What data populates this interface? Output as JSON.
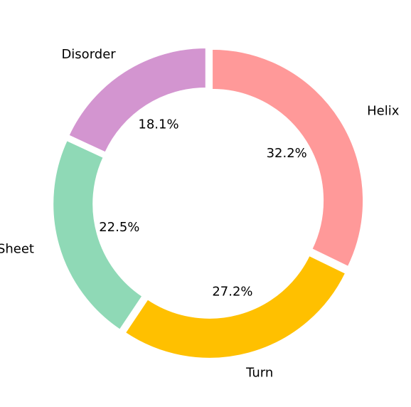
{
  "chart_data": {
    "type": "pie",
    "donut": true,
    "start_angle_deg": 90,
    "direction": "clockwise",
    "title": "",
    "slices": [
      {
        "label": "Helix",
        "value": 32.2,
        "pct_label": "32.2%",
        "color": "#ff9999"
      },
      {
        "label": "Turn",
        "value": 27.2,
        "pct_label": "27.2%",
        "color": "#ffc000"
      },
      {
        "label": "Sheet",
        "value": 22.5,
        "pct_label": "22.5%",
        "color": "#8fd9b6"
      },
      {
        "label": "Disorder",
        "value": 18.1,
        "pct_label": "18.1%",
        "color": "#d395d0"
      }
    ]
  }
}
